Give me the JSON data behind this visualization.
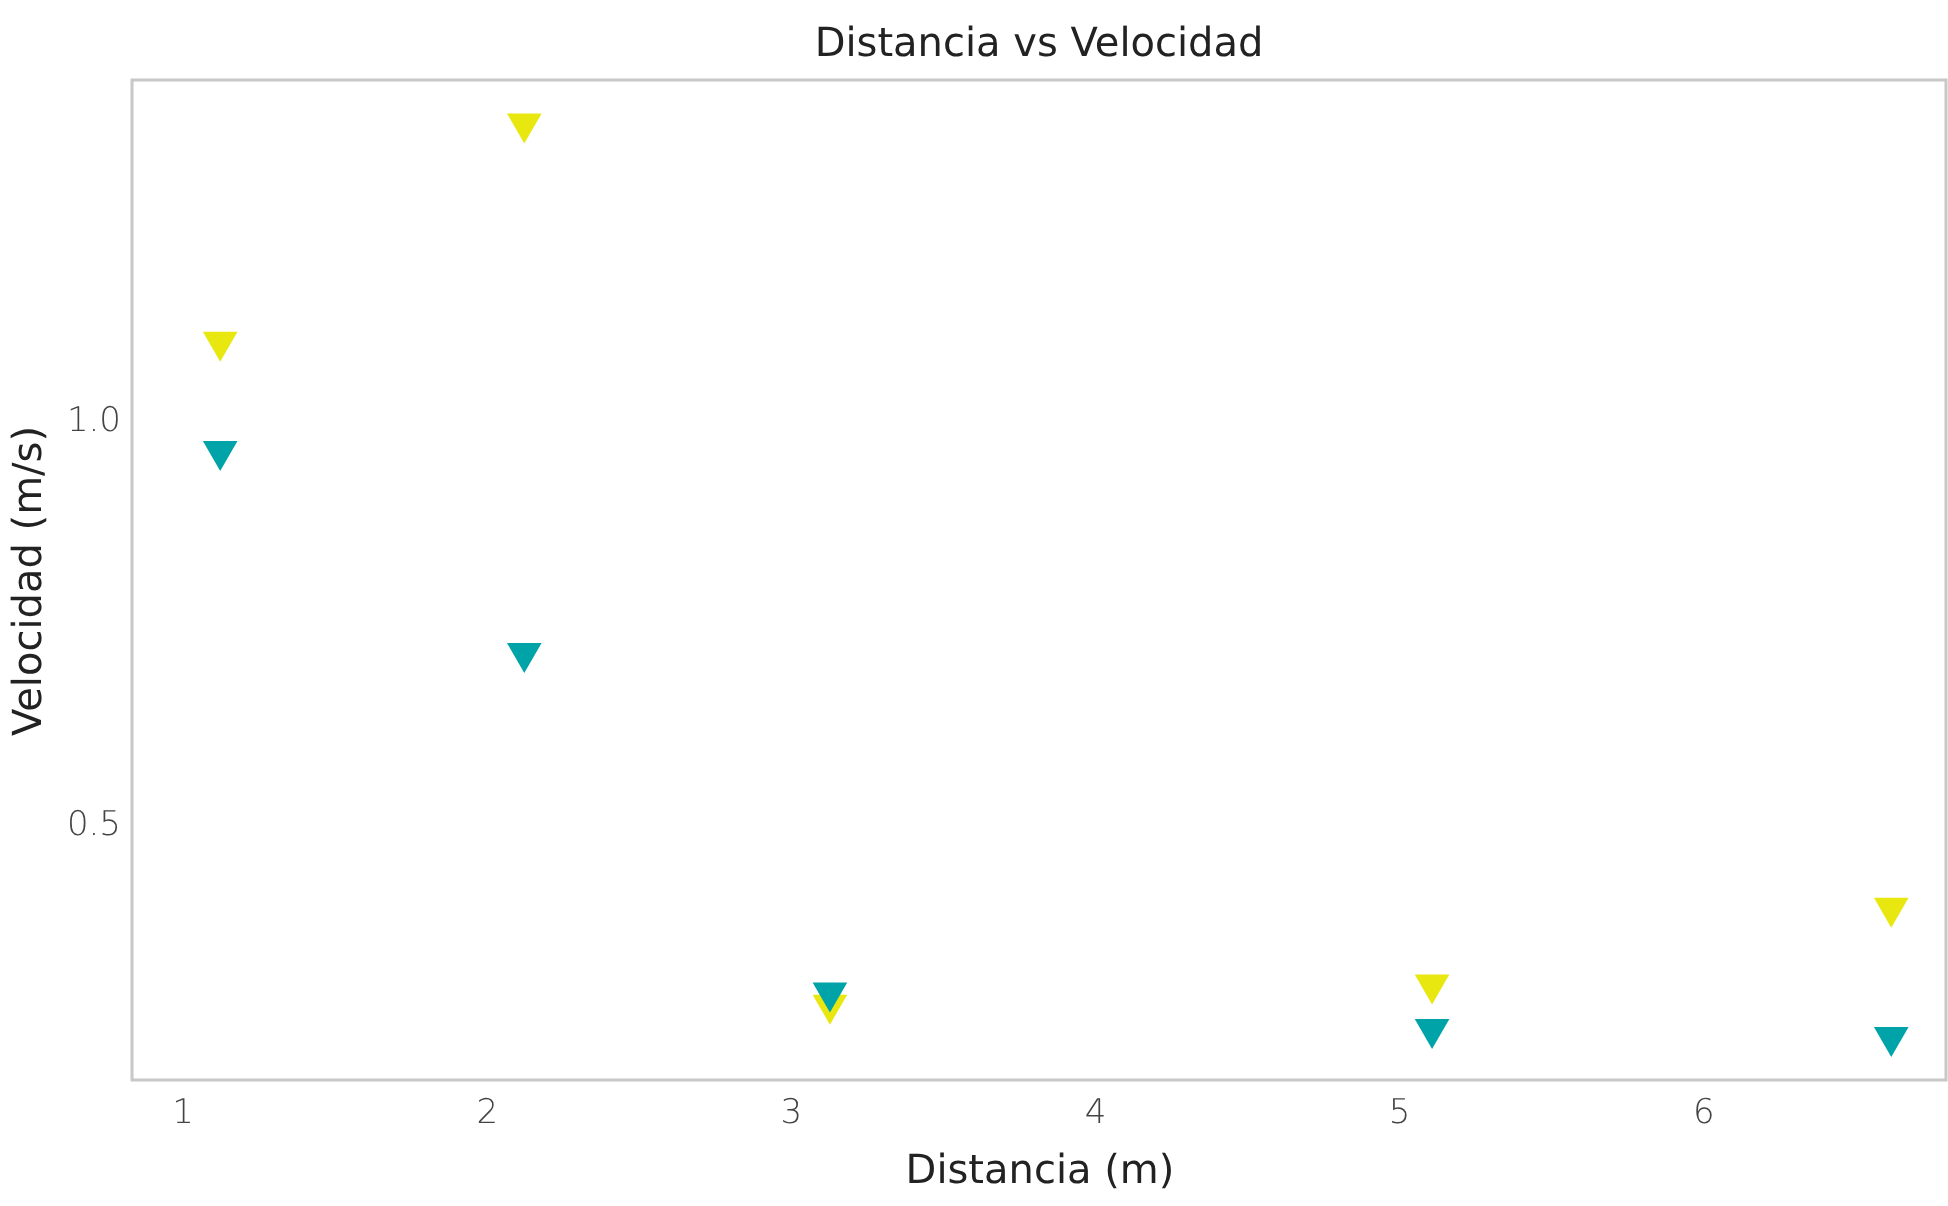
{
  "chart_data": {
    "type": "scatter",
    "title": "Distancia vs Velocidad",
    "xlabel": "Distancia (m)",
    "ylabel": "Velocidad (m/s)",
    "x": [
      1.125,
      2.125,
      3.13,
      5.11,
      6.62
    ],
    "series": [
      {
        "color": "#e8e810",
        "values": [
          1.09,
          1.36,
          0.27,
          0.295,
          0.39
        ]
      },
      {
        "color": "#00a3a8",
        "values": [
          0.955,
          0.705,
          0.285,
          0.24,
          0.23
        ]
      }
    ],
    "xlim": [
      0.835,
      6.8
    ],
    "ylim": [
      0.183,
      1.42
    ],
    "xticks": [
      1,
      2,
      3,
      4,
      5,
      6
    ],
    "yticks": [
      {
        "value": 0.5,
        "label": "0.5"
      },
      {
        "value": 1.0,
        "label": "1.0"
      }
    ],
    "grid": false,
    "legend": false,
    "marker": "triangle"
  }
}
